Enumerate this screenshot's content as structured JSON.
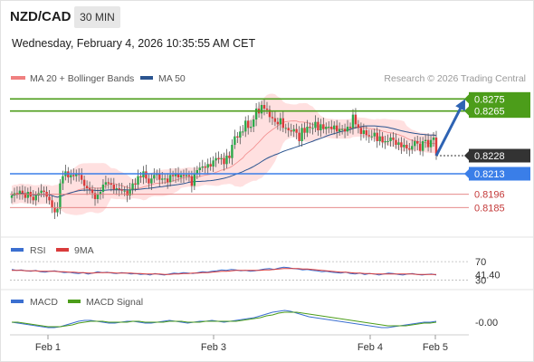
{
  "header": {
    "symbol": "NZD/CAD",
    "timeframe": "30 MIN",
    "datetime": "Wednesday, February 4, 2026 10:35:55 AM CET"
  },
  "colors": {
    "up": "#2ba84a",
    "down": "#d93b3b",
    "ma20": "#f08080",
    "bands": "#ffd6d6",
    "ma50": "#2b5590",
    "resistance": "#4c9d1a",
    "support": "#3a7ee8",
    "support_low": "#e27a7a",
    "rsi": "#3b6fd0",
    "rsi_ma": "#d93b3b",
    "macd": "#3b6fd0",
    "macd_signal": "#4c9d1a",
    "arrow": "#2e63b3",
    "current": "#333333"
  },
  "legend": {
    "ma20_label": "MA 20 + Bollinger Bands",
    "ma50_label": "MA 50",
    "credit": "Research © 2026 Trading Central",
    "rsi_label": "RSI",
    "rsi_ma_label": "9MA",
    "macd_label": "MACD",
    "macd_signal_label": "MACD Signal"
  },
  "chart_data": [
    {
      "type": "candlestick",
      "title": "NZD/CAD 30 MIN",
      "ylim": [
        0.8165,
        0.8285
      ],
      "x_ticks": [
        "Feb 1",
        "Feb 3",
        "Feb 4",
        "Feb 5"
      ],
      "levels": [
        {
          "value": 0.8275,
          "label": "0.8275",
          "kind": "resistance",
          "label_style": "filled"
        },
        {
          "value": 0.8265,
          "label": "0.8265",
          "kind": "resistance",
          "label_style": "filled"
        },
        {
          "value": 0.8228,
          "label": "0.8228",
          "kind": "current",
          "label_style": "filled"
        },
        {
          "value": 0.8213,
          "label": "0.8213",
          "kind": "support",
          "label_style": "filled"
        },
        {
          "value": 0.8196,
          "label": "0.8196",
          "kind": "support_low",
          "label_style": "text"
        },
        {
          "value": 0.8185,
          "label": "0.8185",
          "kind": "support_low",
          "label_style": "text"
        }
      ],
      "arrow": {
        "from": 0.8228,
        "to": 0.8275
      },
      "close": [
        0.8195,
        0.8197,
        0.8196,
        0.8199,
        0.8197,
        0.8193,
        0.8198,
        0.8194,
        0.8191,
        0.8195,
        0.8197,
        0.8199,
        0.8198,
        0.8194,
        0.8191,
        0.8185,
        0.8181,
        0.8184,
        0.8205,
        0.8211,
        0.8215,
        0.821,
        0.8212,
        0.8211,
        0.8213,
        0.8212,
        0.8208,
        0.8203,
        0.8201,
        0.82,
        0.8197,
        0.8192,
        0.8196,
        0.8198,
        0.8204,
        0.8206,
        0.8205,
        0.8204,
        0.82,
        0.8201,
        0.82,
        0.8199,
        0.8199,
        0.8195,
        0.82,
        0.8205,
        0.8204,
        0.8211,
        0.821,
        0.8215,
        0.8209,
        0.8205,
        0.8209,
        0.8212,
        0.8213,
        0.8208,
        0.8209,
        0.8209,
        0.8206,
        0.8212,
        0.8211,
        0.8213,
        0.821,
        0.8212,
        0.8211,
        0.8212,
        0.8211,
        0.8203,
        0.8213,
        0.8216,
        0.8218,
        0.8219,
        0.8218,
        0.8221,
        0.8219,
        0.8224,
        0.8226,
        0.8225,
        0.8226,
        0.8221,
        0.8228,
        0.8226,
        0.8237,
        0.8244,
        0.8243,
        0.8248,
        0.8248,
        0.8257,
        0.8251,
        0.8252,
        0.8258,
        0.8267,
        0.8263,
        0.827,
        0.8267,
        0.8266,
        0.826,
        0.8259,
        0.8256,
        0.8254,
        0.8259,
        0.8251,
        0.8251,
        0.8249,
        0.8248,
        0.825,
        0.8247,
        0.824,
        0.8251,
        0.8247,
        0.8252,
        0.8251,
        0.8251,
        0.8256,
        0.8249,
        0.8254,
        0.825,
        0.8252,
        0.8252,
        0.825,
        0.8253,
        0.8248,
        0.825,
        0.825,
        0.8248,
        0.8252,
        0.8251,
        0.8262,
        0.8254,
        0.8251,
        0.8246,
        0.8249,
        0.8245,
        0.8244,
        0.8244,
        0.8247,
        0.824,
        0.8244,
        0.8239,
        0.824,
        0.824,
        0.8243,
        0.8241,
        0.8237,
        0.8239,
        0.8235,
        0.8237,
        0.8234,
        0.8233,
        0.8236,
        0.824,
        0.8238,
        0.8232,
        0.824,
        0.8241,
        0.8235,
        0.8241,
        0.8243,
        0.8228
      ]
    },
    {
      "type": "line",
      "title": "RSI",
      "ylim": [
        25,
        80
      ],
      "levels": [
        {
          "value": 70,
          "label": "70"
        },
        {
          "value": 30,
          "label": "30"
        }
      ],
      "current": {
        "value": 41.4,
        "label": "41.40"
      },
      "series": [
        {
          "name": "RSI",
          "values": [
            53,
            51,
            52,
            50,
            49,
            51,
            48,
            47,
            49,
            50,
            48,
            46,
            47,
            45,
            44,
            46,
            43,
            45,
            48,
            46,
            47,
            45,
            44,
            46,
            45,
            43,
            44,
            42,
            43,
            41,
            44,
            42,
            41,
            43,
            45,
            44,
            46,
            45,
            44,
            46,
            48,
            47,
            49,
            50,
            52,
            51,
            53,
            52,
            50,
            51,
            49,
            50,
            52,
            54,
            55,
            53,
            56,
            58,
            57,
            55,
            54,
            52,
            53,
            51,
            50,
            48,
            49,
            47,
            46,
            45,
            47,
            44,
            43,
            45,
            42,
            44,
            43,
            41,
            43,
            45,
            44,
            42,
            41,
            43,
            44,
            42,
            41,
            42,
            43,
            41
          ]
        },
        {
          "name": "9MA",
          "values": [
            51,
            51,
            51,
            50,
            50,
            50,
            49,
            49,
            49,
            49,
            48,
            48,
            47,
            47,
            46,
            46,
            45,
            45,
            46,
            46,
            46,
            46,
            45,
            45,
            45,
            45,
            44,
            44,
            43,
            43,
            43,
            43,
            42,
            42,
            43,
            43,
            44,
            44,
            45,
            45,
            46,
            46,
            47,
            48,
            49,
            49,
            50,
            51,
            51,
            51,
            51,
            51,
            51,
            52,
            52,
            53,
            54,
            55,
            55,
            55,
            55,
            54,
            54,
            53,
            52,
            51,
            50,
            49,
            48,
            47,
            47,
            46,
            45,
            45,
            44,
            44,
            43,
            43,
            43,
            43,
            43,
            43,
            43,
            43,
            43,
            42,
            42,
            42,
            42,
            42
          ]
        }
      ]
    },
    {
      "type": "line",
      "title": "MACD",
      "ylim": [
        -0.0012,
        0.0016
      ],
      "current": {
        "value": 0.0,
        "label": "-0.00"
      },
      "series": [
        {
          "name": "MACD",
          "values": [
            0.0,
            -0.0001,
            -0.0002,
            -0.0003,
            -0.0004,
            -0.0005,
            -0.0006,
            -0.0006,
            -0.0005,
            -0.0003,
            -0.0001,
            0.0001,
            0.0002,
            0.0002,
            0.0001,
            0.0,
            -0.0001,
            -0.0001,
            0.0,
            0.0001,
            0.0001,
            0.0,
            -0.0001,
            -0.0001,
            0.0,
            0.0001,
            0.0002,
            0.0001,
            0.0,
            -0.0001,
            0.0,
            0.0001,
            0.0001,
            0.0002,
            0.0001,
            0.0,
            0.0001,
            0.0002,
            0.0003,
            0.0004,
            0.0005,
            0.0007,
            0.0009,
            0.0011,
            0.0012,
            0.0013,
            0.0012,
            0.001,
            0.0008,
            0.0006,
            0.0005,
            0.0004,
            0.0003,
            0.0002,
            0.0001,
            0.0,
            -0.0001,
            -0.0002,
            -0.0003,
            -0.0004,
            -0.0005,
            -0.0006,
            -0.0006,
            -0.0005,
            -0.0004,
            -0.0003,
            -0.0002,
            -0.0001,
            0.0,
            0.0,
            0.0001
          ]
        },
        {
          "name": "MACD Signal",
          "values": [
            0.0,
            0.0,
            -0.0001,
            -0.0002,
            -0.0003,
            -0.0004,
            -0.0005,
            -0.0005,
            -0.0005,
            -0.0004,
            -0.0003,
            -0.0001,
            0.0,
            0.0001,
            0.0001,
            0.0001,
            0.0,
            0.0,
            0.0,
            0.0,
            0.0001,
            0.0001,
            0.0,
            0.0,
            0.0,
            0.0,
            0.0001,
            0.0001,
            0.0001,
            0.0,
            0.0,
            0.0,
            0.0001,
            0.0001,
            0.0001,
            0.0001,
            0.0001,
            0.0001,
            0.0002,
            0.0003,
            0.0004,
            0.0005,
            0.0007,
            0.0008,
            0.001,
            0.0011,
            0.0011,
            0.0011,
            0.001,
            0.0009,
            0.0008,
            0.0007,
            0.0006,
            0.0005,
            0.0004,
            0.0003,
            0.0002,
            0.0001,
            0.0,
            -0.0001,
            -0.0002,
            -0.0003,
            -0.0004,
            -0.0004,
            -0.0004,
            -0.0004,
            -0.0003,
            -0.0002,
            -0.0001,
            -0.0001,
            0.0
          ]
        }
      ]
    }
  ]
}
